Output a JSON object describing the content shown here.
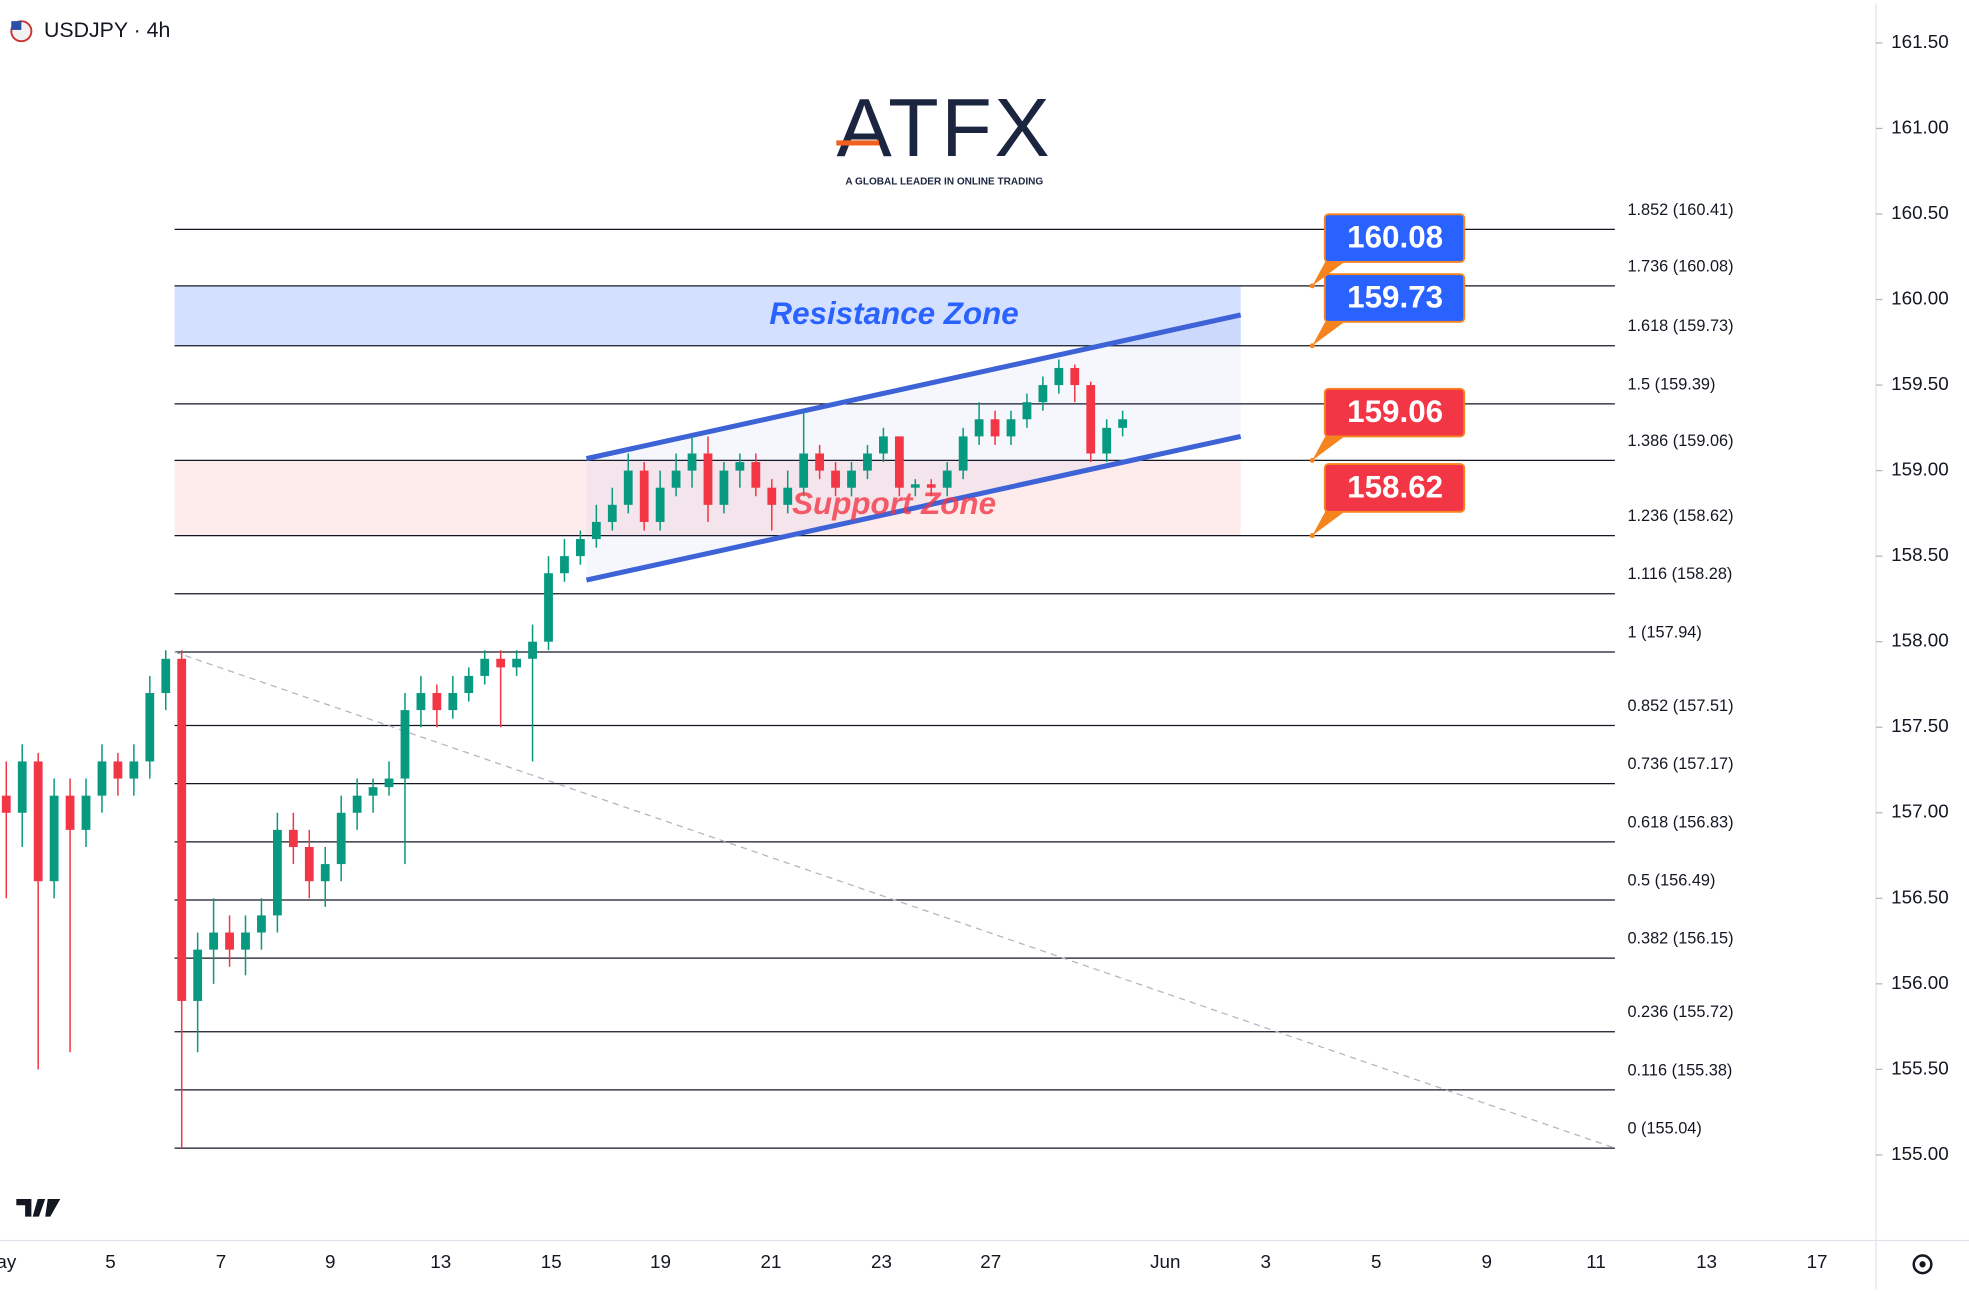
{
  "chart_data": {
    "type": "candlestick",
    "title": "USDJPY · 4h",
    "logo": {
      "brand": "ATFX",
      "tagline": "A GLOBAL LEADER IN ONLINE TRADING"
    },
    "up_color": "#089981",
    "down_color": "#f23645",
    "ylim": [
      154.5,
      161.73
    ],
    "yticks": [
      {
        "value": 155,
        "label": "155.00"
      },
      {
        "value": 155.5,
        "label": "155.50"
      },
      {
        "value": 156,
        "label": "156.00"
      },
      {
        "value": 156.5,
        "label": "156.50"
      },
      {
        "value": 157,
        "label": "157.00"
      },
      {
        "value": 157.5,
        "label": "157.50"
      },
      {
        "value": 158,
        "label": "158.00"
      },
      {
        "value": 158.5,
        "label": "158.50"
      },
      {
        "value": 159,
        "label": "159.00"
      },
      {
        "value": 159.5,
        "label": "159.50"
      },
      {
        "value": 160,
        "label": "160.00"
      },
      {
        "value": 160.5,
        "label": "160.50"
      },
      {
        "value": 161,
        "label": "161.00"
      },
      {
        "value": 161.5,
        "label": "161.50"
      }
    ],
    "x_labels": [
      "ay",
      "5",
      "7",
      "9",
      "13",
      "15",
      "19",
      "21",
      "23",
      "27",
      "Jun",
      "3",
      "5",
      "9",
      "11",
      "13",
      "17"
    ],
    "ohlc": [
      [
        157.1,
        157.3,
        156.5,
        157.0
      ],
      [
        157.0,
        157.4,
        156.8,
        157.3
      ],
      [
        157.3,
        157.35,
        155.5,
        156.6
      ],
      [
        156.6,
        157.2,
        156.5,
        157.1
      ],
      [
        157.1,
        157.2,
        155.6,
        156.9
      ],
      [
        156.9,
        157.2,
        156.8,
        157.1
      ],
      [
        157.1,
        157.4,
        157.0,
        157.3
      ],
      [
        157.3,
        157.35,
        157.1,
        157.2
      ],
      [
        157.2,
        157.4,
        157.1,
        157.3
      ],
      [
        157.3,
        157.8,
        157.2,
        157.7
      ],
      [
        157.7,
        157.95,
        157.6,
        157.9
      ],
      [
        157.9,
        157.95,
        155.04,
        155.9
      ],
      [
        155.9,
        156.3,
        155.6,
        156.2
      ],
      [
        156.2,
        156.5,
        156.0,
        156.3
      ],
      [
        156.3,
        156.4,
        156.1,
        156.2
      ],
      [
        156.2,
        156.4,
        156.05,
        156.3
      ],
      [
        156.3,
        156.5,
        156.2,
        156.4
      ],
      [
        156.4,
        157.0,
        156.3,
        156.9
      ],
      [
        156.9,
        157.0,
        156.7,
        156.8
      ],
      [
        156.8,
        156.9,
        156.5,
        156.6
      ],
      [
        156.6,
        156.8,
        156.45,
        156.7
      ],
      [
        156.7,
        157.1,
        156.6,
        157.0
      ],
      [
        157.0,
        157.2,
        156.9,
        157.1
      ],
      [
        157.1,
        157.2,
        157.0,
        157.15
      ],
      [
        157.15,
        157.3,
        157.1,
        157.2
      ],
      [
        157.2,
        157.7,
        156.7,
        157.6
      ],
      [
        157.6,
        157.8,
        157.5,
        157.7
      ],
      [
        157.7,
        157.75,
        157.5,
        157.6
      ],
      [
        157.6,
        157.8,
        157.55,
        157.7
      ],
      [
        157.7,
        157.85,
        157.65,
        157.8
      ],
      [
        157.8,
        157.95,
        157.75,
        157.9
      ],
      [
        157.9,
        157.95,
        157.5,
        157.85
      ],
      [
        157.85,
        157.95,
        157.8,
        157.9
      ],
      [
        157.9,
        158.1,
        157.3,
        158.0
      ],
      [
        158.0,
        158.5,
        157.95,
        158.4
      ],
      [
        158.4,
        158.6,
        158.35,
        158.5
      ],
      [
        158.5,
        158.65,
        158.45,
        158.6
      ],
      [
        158.6,
        158.8,
        158.55,
        158.7
      ],
      [
        158.7,
        158.9,
        158.65,
        158.8
      ],
      [
        158.8,
        159.1,
        158.75,
        159.0
      ],
      [
        159.0,
        159.05,
        158.65,
        158.7
      ],
      [
        158.7,
        159.0,
        158.65,
        158.9
      ],
      [
        158.9,
        159.1,
        158.85,
        159.0
      ],
      [
        159.0,
        159.2,
        158.9,
        159.1
      ],
      [
        159.1,
        159.2,
        158.7,
        158.8
      ],
      [
        158.8,
        159.05,
        158.75,
        159.0
      ],
      [
        159.0,
        159.1,
        158.9,
        159.05
      ],
      [
        159.05,
        159.1,
        158.85,
        158.9
      ],
      [
        158.9,
        158.95,
        158.65,
        158.8
      ],
      [
        158.8,
        159.0,
        158.75,
        158.9
      ],
      [
        158.9,
        159.35,
        158.85,
        159.1
      ],
      [
        159.1,
        159.15,
        158.95,
        159.0
      ],
      [
        159.0,
        159.05,
        158.85,
        158.9
      ],
      [
        158.9,
        159.05,
        158.85,
        159.0
      ],
      [
        159.0,
        159.15,
        158.95,
        159.1
      ],
      [
        159.1,
        159.25,
        159.05,
        159.2
      ],
      [
        159.2,
        159.2,
        158.85,
        158.9
      ],
      [
        158.9,
        158.95,
        158.85,
        158.92
      ],
      [
        158.92,
        158.95,
        158.85,
        158.9
      ],
      [
        158.9,
        159.05,
        158.85,
        159.0
      ],
      [
        159.0,
        159.25,
        158.95,
        159.2
      ],
      [
        159.2,
        159.4,
        159.15,
        159.3
      ],
      [
        159.3,
        159.35,
        159.15,
        159.2
      ],
      [
        159.2,
        159.35,
        159.15,
        159.3
      ],
      [
        159.3,
        159.45,
        159.25,
        159.4
      ],
      [
        159.4,
        159.55,
        159.35,
        159.5
      ],
      [
        159.5,
        159.65,
        159.45,
        159.6
      ],
      [
        159.6,
        159.62,
        159.4,
        159.5
      ],
      [
        159.5,
        159.52,
        159.05,
        159.1
      ],
      [
        159.1,
        159.3,
        159.05,
        159.25
      ],
      [
        159.25,
        159.35,
        159.2,
        159.3
      ]
    ],
    "fib_levels": [
      {
        "value": 160.41,
        "label": "1.852 (160.41)"
      },
      {
        "value": 160.08,
        "label": "1.736 (160.08)"
      },
      {
        "value": 159.73,
        "label": "1.618 (159.73)"
      },
      {
        "value": 159.39,
        "label": "1.5 (159.39)"
      },
      {
        "value": 159.06,
        "label": "1.386 (159.06)"
      },
      {
        "value": 158.62,
        "label": "1.236 (158.62)"
      },
      {
        "value": 158.28,
        "label": "1.116 (158.28)"
      },
      {
        "value": 157.94,
        "label": "1 (157.94)"
      },
      {
        "value": 157.51,
        "label": "0.852 (157.51)"
      },
      {
        "value": 157.17,
        "label": "0.736 (157.17)"
      },
      {
        "value": 156.83,
        "label": "0.618 (156.83)"
      },
      {
        "value": 156.49,
        "label": "0.5 (156.49)"
      },
      {
        "value": 156.15,
        "label": "0.382 (156.15)"
      },
      {
        "value": 155.72,
        "label": "0.236 (155.72)"
      },
      {
        "value": 155.38,
        "label": "0.116 (155.38)"
      },
      {
        "value": 155.04,
        "label": "0 (155.04)"
      }
    ],
    "zones": [
      {
        "name": "Resistance Zone",
        "low": 159.73,
        "high": 160.08,
        "color": "#2962ff"
      },
      {
        "name": "Support Zone",
        "low": 158.62,
        "high": 159.06,
        "color": "#f23645"
      }
    ],
    "price_tags": [
      {
        "value": 160.08,
        "color": "#2962ff"
      },
      {
        "value": 159.73,
        "color": "#2962ff"
      },
      {
        "value": 159.06,
        "color": "#f23645"
      },
      {
        "value": 158.62,
        "color": "#f23645"
      }
    ],
    "channel": {
      "upper": [
        159.07,
        159.91
      ],
      "lower": [
        158.36,
        159.2
      ],
      "color": "#3d63d6"
    },
    "trendline": [
      157.94,
      155.04
    ]
  }
}
